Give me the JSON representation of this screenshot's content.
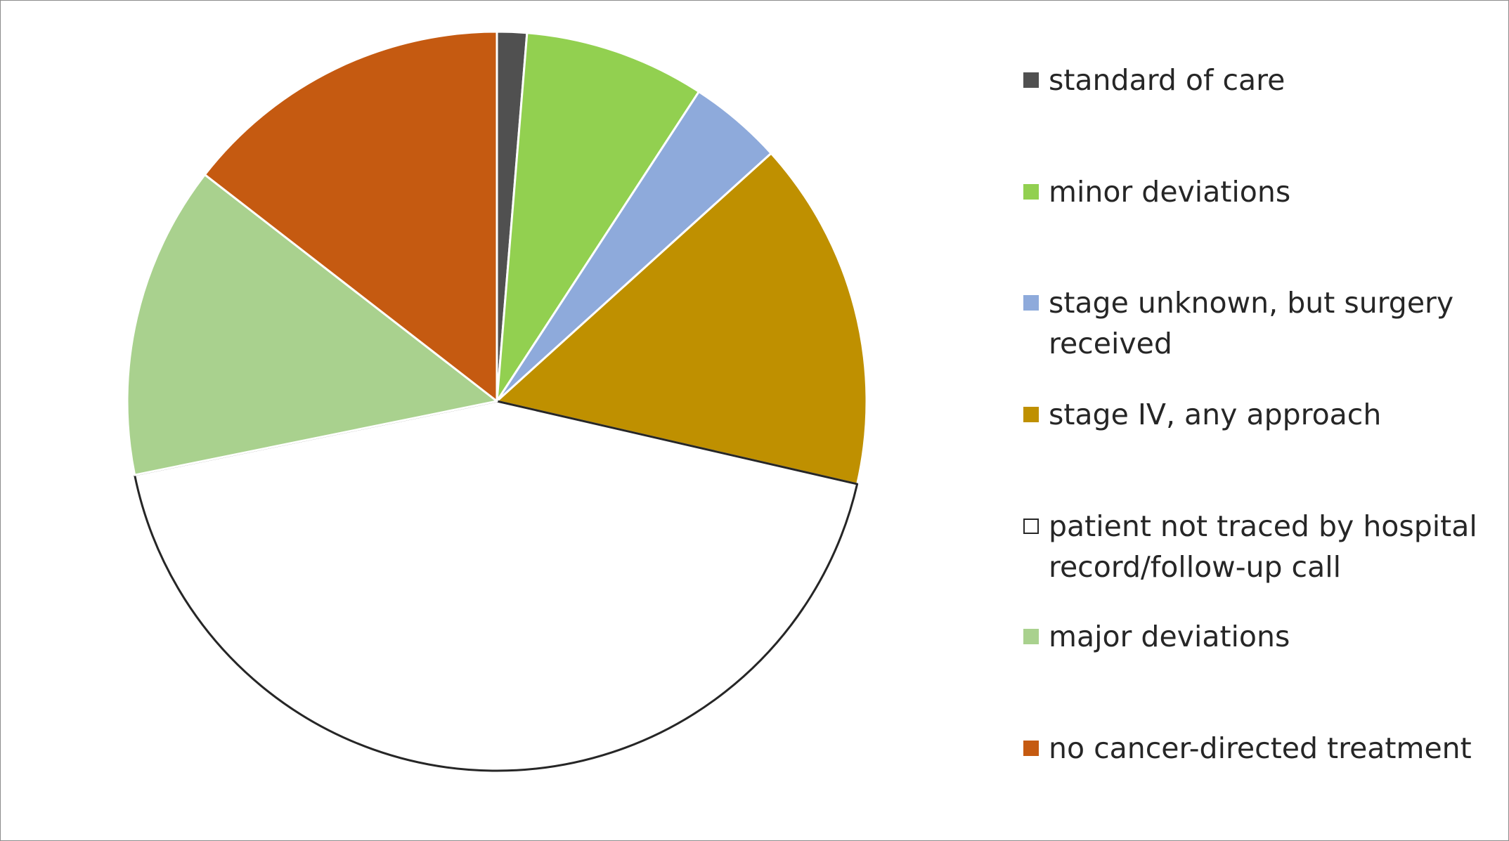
{
  "chart_data": {
    "type": "pie",
    "title": "",
    "start_angle_deg": 0,
    "direction": "clockwise",
    "slices": [
      {
        "label": "standard of care",
        "value": 1.3,
        "color": "#505050"
      },
      {
        "label": "minor deviations",
        "value": 7.9,
        "color": "#92d050"
      },
      {
        "label": "stage unknown, but surgery received",
        "value": 4.1,
        "color": "#8eaadb"
      },
      {
        "label": "stage IV, any approach",
        "value": 15.3,
        "color": "#bf9000"
      },
      {
        "label": "patient not traced by hospital record/follow-up call",
        "value": 43.2,
        "color": "#ffffff"
      },
      {
        "label": "major deviations",
        "value": 13.7,
        "color": "#a9d18e"
      },
      {
        "label": "no cancer-directed treatment",
        "value": 14.5,
        "color": "#c55a11"
      }
    ],
    "legend_position": "right"
  }
}
